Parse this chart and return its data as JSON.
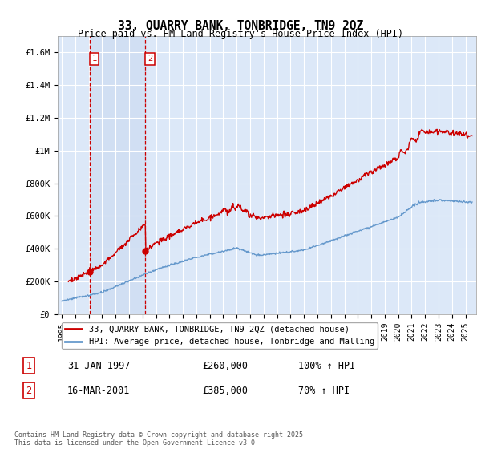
{
  "title": "33, QUARRY BANK, TONBRIDGE, TN9 2QZ",
  "subtitle": "Price paid vs. HM Land Registry's House Price Index (HPI)",
  "ylabel_ticks": [
    "£0",
    "£200K",
    "£400K",
    "£600K",
    "£800K",
    "£1M",
    "£1.2M",
    "£1.4M",
    "£1.6M"
  ],
  "ytick_vals": [
    0,
    200000,
    400000,
    600000,
    800000,
    1000000,
    1200000,
    1400000,
    1600000
  ],
  "ylim": [
    0,
    1700000
  ],
  "xlim_start": 1994.7,
  "xlim_end": 2025.8,
  "purchase1_date": 1997.08,
  "purchase1_price": 260000,
  "purchase2_date": 2001.21,
  "purchase2_price": 385000,
  "legend_line1": "33, QUARRY BANK, TONBRIDGE, TN9 2QZ (detached house)",
  "legend_line2": "HPI: Average price, detached house, Tonbridge and Malling",
  "footer": "Contains HM Land Registry data © Crown copyright and database right 2025.\nThis data is licensed under the Open Government Licence v3.0.",
  "line_color_red": "#cc0000",
  "line_color_blue": "#6699cc",
  "bg_color": "#dce8f8",
  "grid_color": "#ffffff",
  "box_color": "#cc0000",
  "xtick_years": [
    1995,
    1996,
    1997,
    1998,
    1999,
    2000,
    2001,
    2002,
    2003,
    2004,
    2005,
    2006,
    2007,
    2008,
    2009,
    2010,
    2011,
    2012,
    2013,
    2014,
    2015,
    2016,
    2017,
    2018,
    2019,
    2020,
    2021,
    2022,
    2023,
    2024,
    2025
  ],
  "shade_between_vlines": true
}
